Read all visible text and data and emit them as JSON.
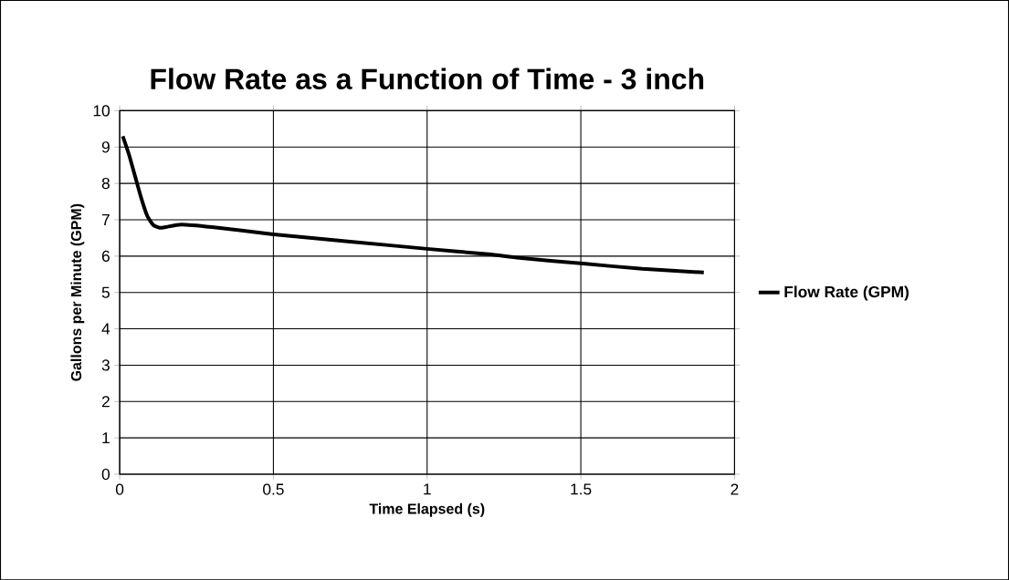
{
  "chart_data": {
    "type": "line",
    "title": "Flow Rate as a Function of Time - 3 inch",
    "xlabel": "Time Elapsed (s)",
    "ylabel": "Gallons per Minute (GPM)",
    "series": [
      {
        "name": "Flow Rate (GPM)",
        "color": "#000000",
        "x": [
          0.01,
          0.03,
          0.05,
          0.07,
          0.09,
          0.11,
          0.13,
          0.15,
          0.2,
          0.3,
          0.5,
          0.75,
          1.0,
          1.2,
          1.3,
          1.5,
          1.7,
          1.9
        ],
        "values": [
          9.3,
          8.8,
          8.2,
          7.6,
          7.1,
          6.85,
          6.78,
          6.8,
          6.87,
          6.8,
          6.6,
          6.4,
          6.2,
          6.05,
          5.95,
          5.8,
          5.65,
          5.55
        ]
      }
    ],
    "xlim": [
      0,
      2
    ],
    "ylim": [
      0,
      10
    ],
    "xticks": [
      0,
      0.5,
      1,
      1.5,
      2
    ],
    "yticks": [
      0,
      1,
      2,
      3,
      4,
      5,
      6,
      7,
      8,
      9,
      10
    ],
    "grid": true,
    "legend": "right",
    "marker": "none",
    "line_style": "solid"
  }
}
